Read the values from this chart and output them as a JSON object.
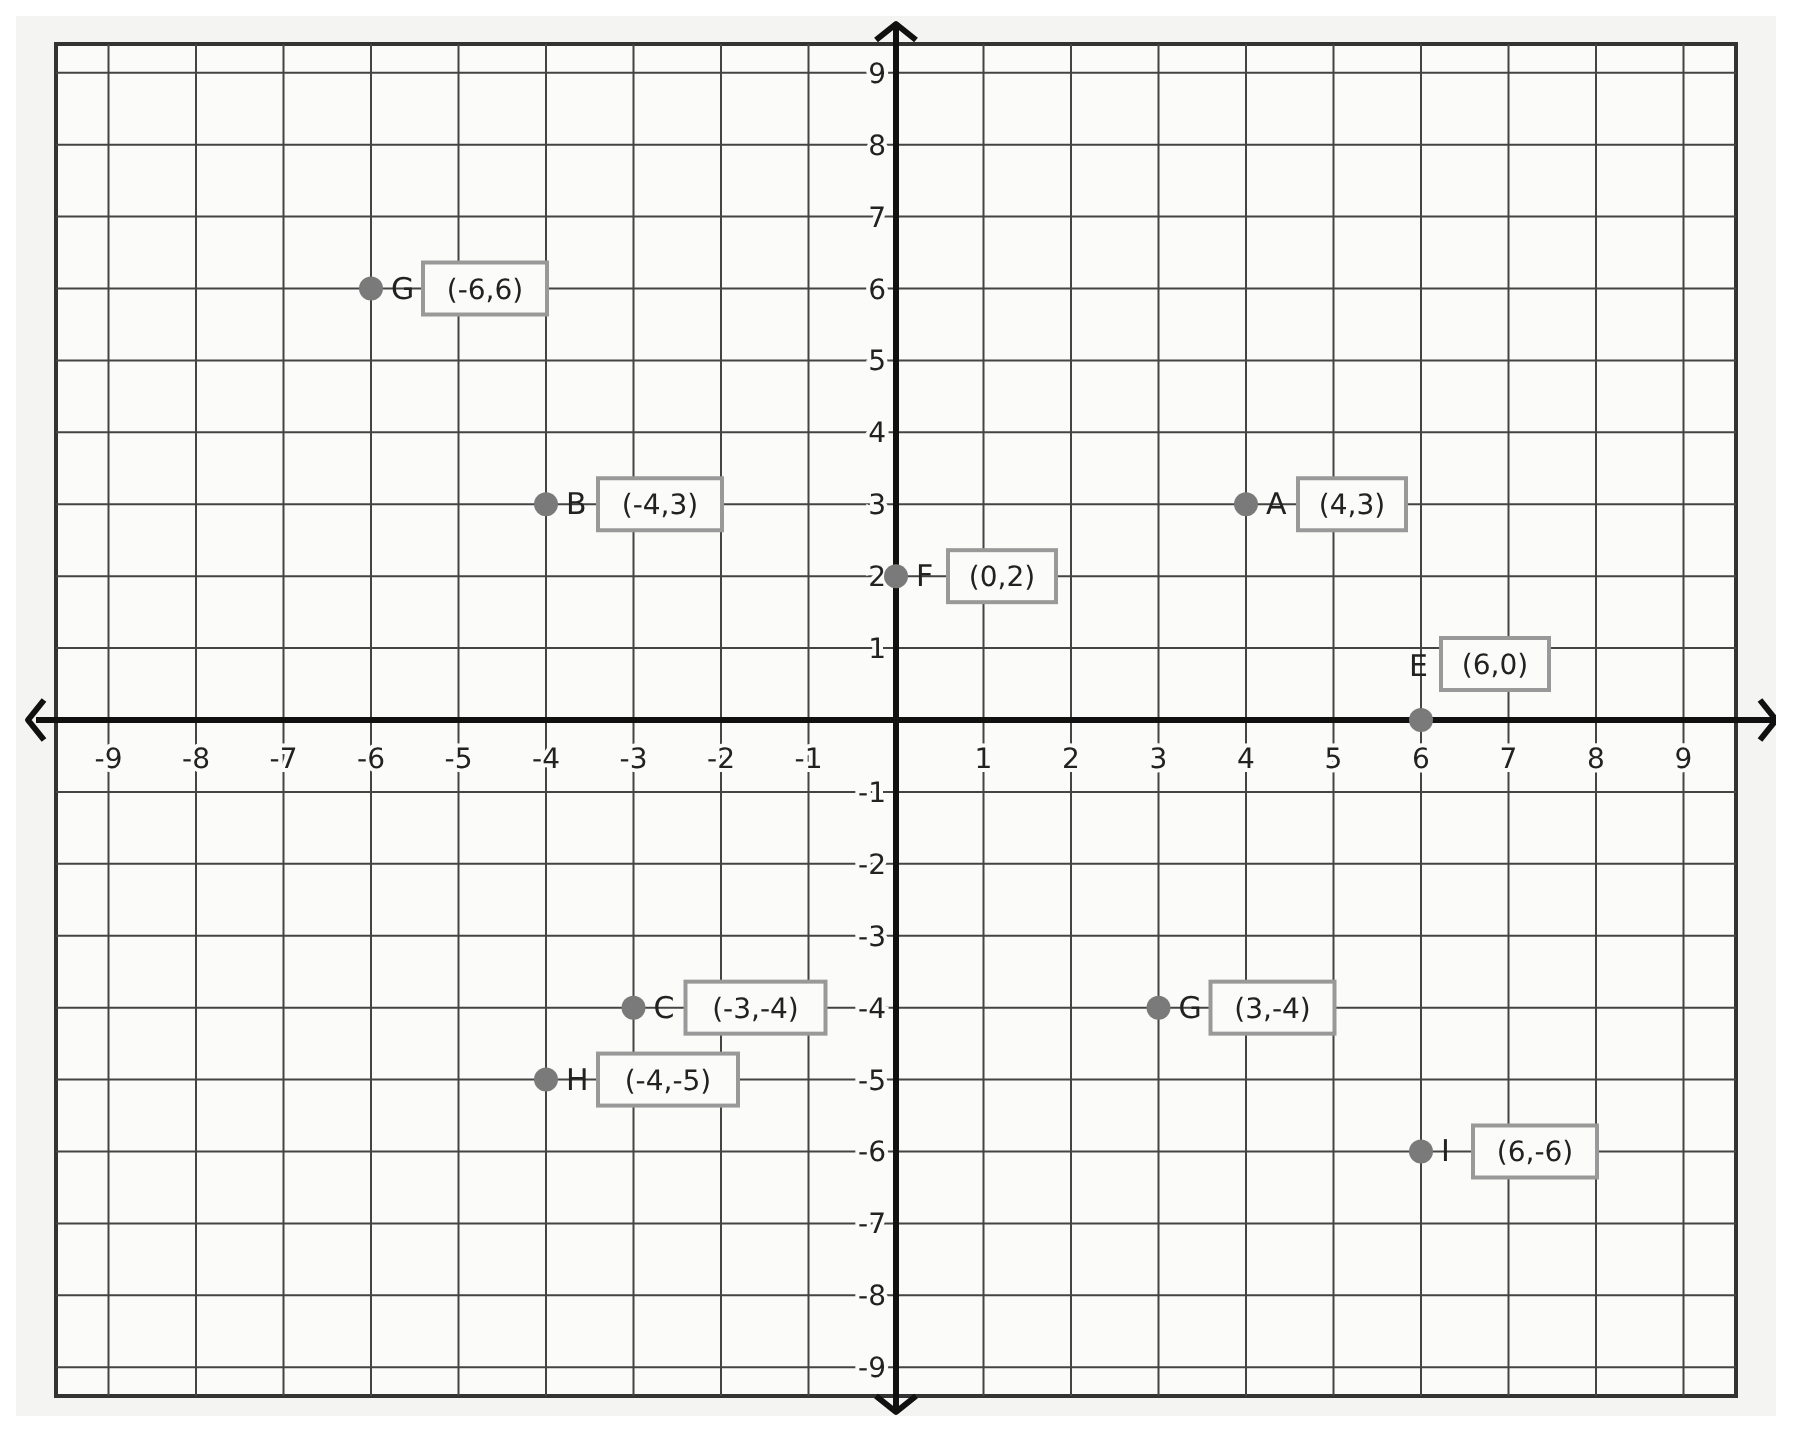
{
  "chart_data": {
    "type": "scatter",
    "x": [
      -6,
      -4,
      0,
      4,
      6,
      -3,
      -4,
      3,
      6
    ],
    "values": [
      6,
      3,
      2,
      3,
      0,
      -4,
      -5,
      -4,
      -6
    ],
    "color": "#7a7a7a",
    "marker": "circle",
    "grid": true,
    "legend": false,
    "xlim": [
      -9.6,
      9.6
    ],
    "ylim": [
      -9.4,
      9.4
    ],
    "xticks": [
      -9,
      -8,
      -7,
      -6,
      -5,
      -4,
      -3,
      -2,
      -1,
      1,
      2,
      3,
      4,
      5,
      6,
      7,
      8,
      9
    ],
    "yticks": [
      -9,
      -8,
      -7,
      -6,
      -5,
      -4,
      -3,
      -2,
      -1,
      1,
      2,
      3,
      4,
      5,
      6,
      7,
      8,
      9
    ],
    "annotations": [
      {
        "text": "G",
        "x": -6,
        "y": 6
      },
      "(-6,6)",
      {
        "text": "B",
        "x": -4,
        "y": 3
      },
      "(-4,3)",
      {
        "text": "F",
        "x": 0,
        "y": 2
      },
      "(0,2)",
      {
        "text": "A",
        "x": 4,
        "y": 3
      },
      "(4,3)",
      {
        "text": "E",
        "x": 6,
        "y": 0
      },
      "(6,0)",
      {
        "text": "C",
        "x": -3,
        "y": -4
      },
      "(-3,-4)",
      {
        "text": "H",
        "x": -4,
        "y": -5
      },
      "(-4,-5)",
      {
        "text": "G",
        "x": 3,
        "y": -4
      },
      "(3,-4)",
      {
        "text": "I",
        "x": 6,
        "y": -6
      },
      "(6,-6)"
    ]
  }
}
